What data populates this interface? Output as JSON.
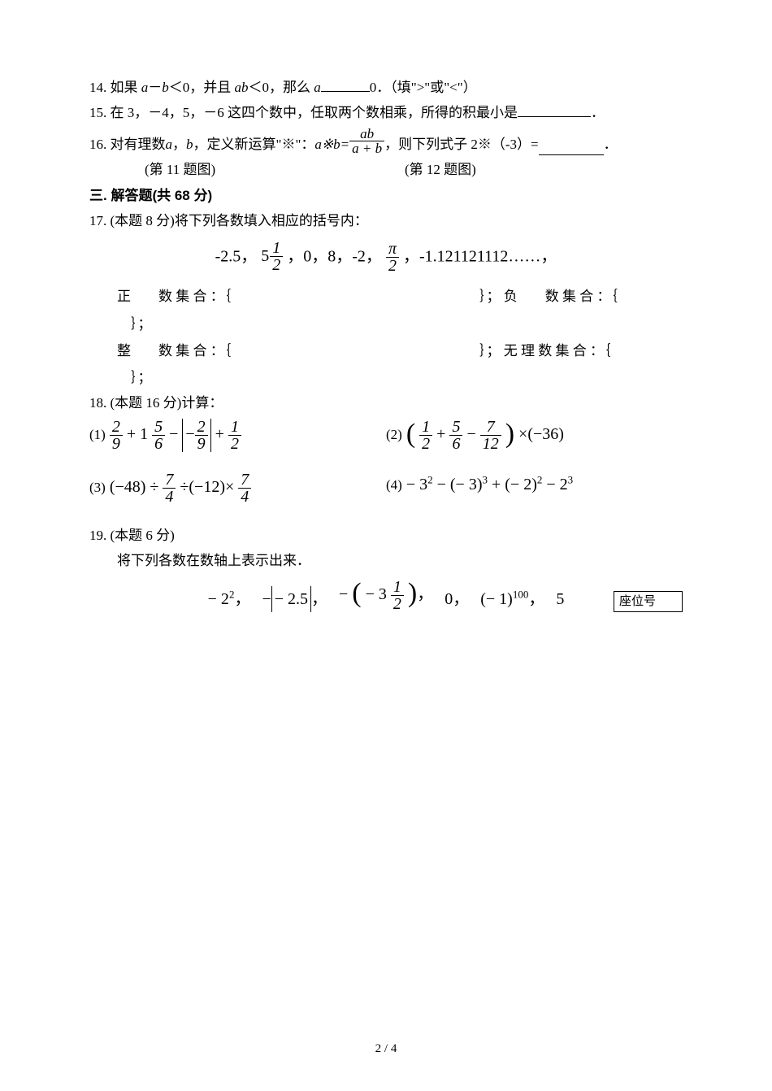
{
  "q14": {
    "prefix": "14. 如果 ",
    "mid1": "－",
    "cond1": "＜0，并且 ",
    "cond2": "＜0，那么 ",
    "suffix": "0．（填\">\"或\"<\"）",
    "varA": "a",
    "varB": "b",
    "varAB": "ab"
  },
  "q15": {
    "text": "15. 在 3，－4，5，－6 这四个数中，任取两个数相乘，所得的积最小是",
    "end": "．"
  },
  "q16": {
    "prefix": "16. 对有理数 ",
    "mid": "，定义新运算\"※\"：",
    "eq_left": "a※b=",
    "frac_num": "ab",
    "frac_den": "a + b",
    "after": "，则下列式子 2※（-3）=",
    "end": "．",
    "varA": "a",
    "varB": "b"
  },
  "captions": {
    "c1": "(第 11 题图)",
    "c2": "(第 12 题图)"
  },
  "section3": "三. 解答题(共 68 分)",
  "q17": {
    "header": "17. (本题 8 分)将下列各数填入相应的括号内：",
    "items": "-2.5，",
    "mixed_whole": "5",
    "mixed_num": "1",
    "mixed_den": "2",
    "items2": "，0，8，-2，",
    "pi": "π",
    "two": "2",
    "items3": "，-1.121121112……，",
    "pos_label": "正　　数 集 合 ：｛",
    "neg_label": "｝； 负　　数 集 合 ：｛",
    "int_label": "整　　数 集 合 ：｛",
    "irr_label": "｝； 无 理 数 集 合 ：｛",
    "close": "｝；"
  },
  "q18": {
    "header": "18. (本题 16 分)计算：",
    "s1": "(1)",
    "s2": "(2)",
    "s3": "(3)",
    "s4": "(4)",
    "e1_f1n": "2",
    "e1_f1d": "9",
    "e1_plus": "+ 1",
    "e1_f2n": "5",
    "e1_f2d": "6",
    "e1_minus": "−",
    "e1_absf_n": "2",
    "e1_absf_d": "9",
    "e1_plusf_n": "1",
    "e1_plusf_d": "2",
    "e2_f1n": "1",
    "e2_f1d": "2",
    "e2_f2n": "5",
    "e2_f2d": "6",
    "e2_f3n": "7",
    "e2_f3d": "12",
    "e2_tail": "×(−36)",
    "e3_lead": "(−48) ÷",
    "e3_f1n": "7",
    "e3_f1d": "4",
    "e3_mid": "÷(−12)×",
    "e3_f2n": "7",
    "e3_f2d": "4",
    "e4": "− 3² − (− 3)³ + (− 2)² − 2³"
  },
  "q19": {
    "header": "19. (本题 6 分)",
    "sub": "将下列各数在数轴上表示出来．",
    "i1_base": "− 2",
    "i1_exp": "2",
    "comma": "，",
    "i2_pre": "−",
    "i2_abs": "− 2.5",
    "i3_pre": "−",
    "i3_inner_whole": "− 3",
    "i3_inner_num": "1",
    "i3_inner_den": "2",
    "i4": "0，",
    "i5_base": "(− 1)",
    "i5_exp": "100",
    "i6": "5"
  },
  "seat_label": "座位号",
  "page_number": "2 / 4"
}
